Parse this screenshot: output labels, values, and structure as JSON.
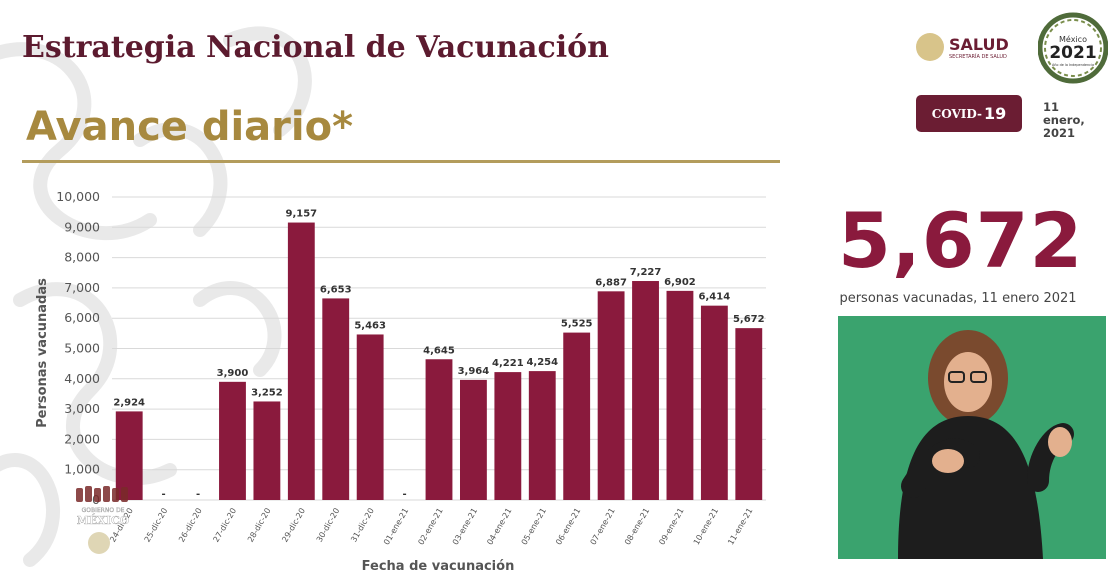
{
  "header": {
    "title": "Estrategia Nacional de Vacunación",
    "subtitle": "Avance diario*"
  },
  "logos": {
    "salud_label": "SALUD",
    "salud_sub": "SECRETARÍA DE SALUD",
    "anniversary_line1": "México",
    "anniversary_year": "2021",
    "anniversary_line3": "Año de la Independencia",
    "gob_line1": "GOBIERNO DE",
    "gob_line2": "MÉXICO"
  },
  "badge": {
    "prefix": "COVID-",
    "number": "19",
    "date": "11 enero, 2021"
  },
  "summary": {
    "value": "5,672",
    "caption": "personas vacunadas, 11 enero 2021"
  },
  "colors": {
    "bar": "#8a1a3d",
    "title": "#5c1b2f",
    "subtitle": "#a7893f",
    "badge": "#6b1d33",
    "video_bg": "#3aa36e"
  },
  "chart_data": {
    "type": "bar",
    "xlabel": "Fecha de vacunación",
    "ylabel": "Personas vacunadas",
    "ylim": [
      0,
      10000
    ],
    "yticks": [
      0,
      1000,
      2000,
      3000,
      4000,
      5000,
      6000,
      7000,
      8000,
      9000,
      10000
    ],
    "ytick_labels": [
      "0",
      "1,000",
      "2,000",
      "3,000",
      "4,000",
      "5,000",
      "6,000",
      "7,000",
      "8,000",
      "9,000",
      "10,000"
    ],
    "grid": true,
    "categories": [
      "24-dic-20",
      "25-dic-20",
      "26-dic-20",
      "27-dic-20",
      "28-dic-20",
      "29-dic-20",
      "30-dic-20",
      "31-dic-20",
      "01-ene-21",
      "02-ene-21",
      "03-ene-21",
      "04-ene-21",
      "05-ene-21",
      "06-ene-21",
      "07-ene-21",
      "08-ene-21",
      "09-ene-21",
      "10-ene-21",
      "11-ene-21"
    ],
    "values": [
      2924,
      null,
      null,
      3900,
      3252,
      9157,
      6653,
      5463,
      null,
      4645,
      3964,
      4221,
      4254,
      5525,
      6887,
      7227,
      6902,
      6414,
      5672
    ],
    "data_labels": [
      "2,924",
      "-",
      "-",
      "3,900",
      "3,252",
      "9,157",
      "6,653",
      "5,463",
      "-",
      "4,645",
      "3,964",
      "4,221",
      "4,254",
      "5,525",
      "6,887",
      "7,227",
      "6,902",
      "6,414",
      "5,672"
    ]
  }
}
